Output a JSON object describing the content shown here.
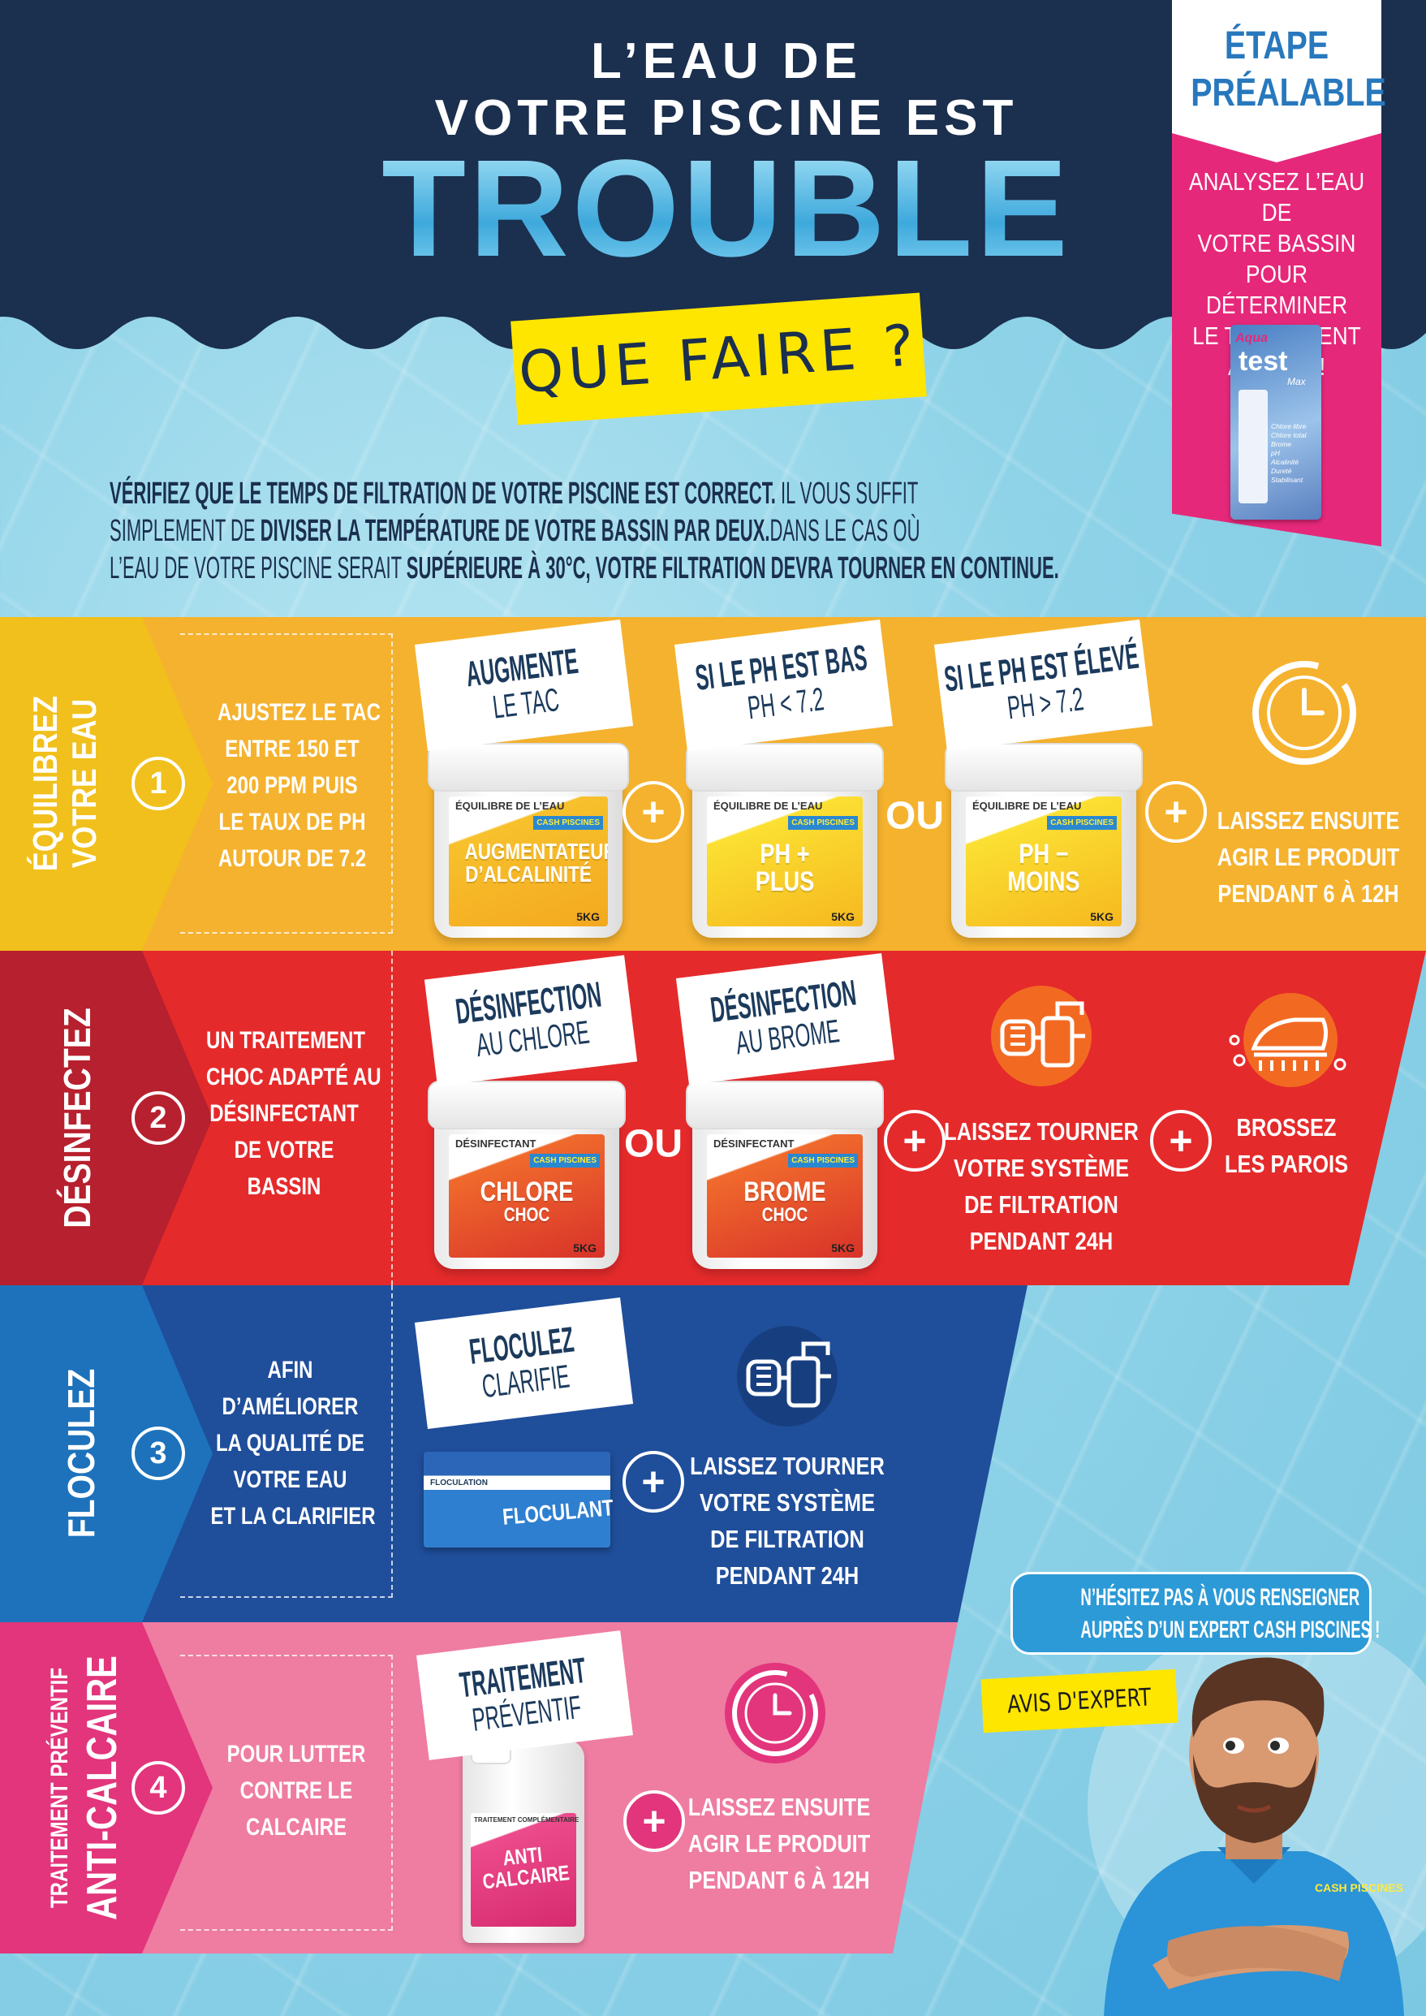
{
  "header": {
    "line1": "L’EAU DE",
    "line2": "VOTRE PISCINE EST",
    "big": "TROUBLE",
    "question": "QUE FAIRE ?"
  },
  "prerequisite": {
    "title1": "ÉTAPE",
    "title2": "PRÉALABLE",
    "text": [
      "ANALYSEZ L’EAU DE",
      "VOTRE BASSIN",
      "POUR DÉTERMINER",
      "LE TRAITEMENT",
      "ADAPTÉ !"
    ],
    "product": {
      "brand": "Aqua",
      "name": "test",
      "suffix": "Max",
      "list": [
        "Chlore libre",
        "Chlore total",
        "Brome",
        "pH",
        "Alcalinité",
        "Dureté",
        "Stabilisant"
      ]
    }
  },
  "intro": {
    "l1_bold": "VÉRIFIEZ QUE LE TEMPS DE FILTRATION DE VOTRE PISCINE EST CORRECT.",
    "l1_rest": " IL VOUS SUFFIT",
    "l2_a": "SIMPLEMENT DE ",
    "l2_bold": "DIVISER LA TEMPÉRATURE DE VOTRE BASSIN PAR DEUX.",
    "l2_rest": "DANS LE CAS OÙ",
    "l3_a": "L’EAU DE VOTRE PISCINE SERAIT ",
    "l3_bold": "SUPÉRIEURE À 30°C, VOTRE FILTRATION DEVRA TOURNER EN CONTINUE."
  },
  "common": {
    "plus": "+",
    "or": "OU",
    "brand": "CASH PISCINES",
    "weight": "5KG"
  },
  "steps": [
    {
      "number": "1",
      "title1": "ÉQUILIBREZ",
      "title2": "VOTRE EAU",
      "description": [
        "AJUSTEZ LE TAC",
        "ENTRE 150 ET",
        "200 PPM PUIS",
        "LE TAUX DE PH",
        "AUTOUR DE 7.2"
      ],
      "products": [
        {
          "card1": "AUGMENTE",
          "card2": "LE TAC",
          "category": "ÉQUILIBRE DE L’EAU",
          "name1": "AUGMENTATEUR",
          "name2": "D’ALCALINITÉ"
        },
        {
          "card1": "SI LE PH EST BAS",
          "card2": "PH < 7.2",
          "category": "ÉQUILIBRE DE L’EAU",
          "name1": "PH +",
          "name2": "PLUS"
        },
        {
          "card1": "SI LE PH EST ÉLEVÉ",
          "card2": "PH > 7.2",
          "category": "ÉQUILIBRE DE L’EAU",
          "name1": "PH −",
          "name2": "MOINS"
        }
      ],
      "action": [
        "LAISSEZ ENSUITE",
        "AGIR LE PRODUIT",
        "PENDANT 6 À 12H"
      ],
      "action_icon": "clock-icon",
      "band_color": "#f5b22e",
      "tab_color": "#f1c01c"
    },
    {
      "number": "2",
      "title1": "DÉSINFECTEZ",
      "description": [
        "UN TRAITEMENT",
        "CHOC ADAPTÉ AU",
        "DÉSINFECTANT",
        "DE VOTRE",
        "BASSIN"
      ],
      "products": [
        {
          "card1": "DÉSINFECTION",
          "card2": "AU CHLORE",
          "category": "DÉSINFECTANT",
          "name1": "CHLORE",
          "name2": "CHOC"
        },
        {
          "card1": "DÉSINFECTION",
          "card2": "AU BROME",
          "category": "DÉSINFECTANT",
          "name1": "BROME",
          "name2": "CHOC"
        }
      ],
      "action": [
        "LAISSEZ TOURNER",
        "VOTRE SYSTÈME",
        "DE FILTRATION",
        "PENDANT 24H"
      ],
      "action_icon": "filtration-icon",
      "action2": [
        "BROSSEZ",
        "LES PAROIS"
      ],
      "action2_icon": "brush-icon",
      "band_color": "#e52a2b",
      "tab_color": "#b7202e"
    },
    {
      "number": "3",
      "title1": "FLOCULEZ",
      "description": [
        "AFIN",
        "D’AMÉLIORER",
        "LA QUALITÉ DE",
        "VOTRE EAU",
        "ET LA CLARIFIER"
      ],
      "products": [
        {
          "card1": "FLOCULEZ",
          "card2": "CLARIFIE",
          "category": "FLOCULATION",
          "name1": "FLOCULANT"
        }
      ],
      "action": [
        "LAISSEZ TOURNER",
        "VOTRE SYSTÈME",
        "DE FILTRATION",
        "PENDANT 24H"
      ],
      "action_icon": "filtration-icon",
      "band_color": "#1f4e9b",
      "tab_color": "#1d72bb"
    },
    {
      "number": "4",
      "title1": "TRAITEMENT PRÉVENTIF",
      "title2": "ANTI-CALCAIRE",
      "description": [
        "POUR LUTTER",
        "CONTRE LE",
        "CALCAIRE"
      ],
      "products": [
        {
          "card1": "TRAITEMENT",
          "card2": "PRÉVENTIF",
          "category": "TRAITEMENT COMPLÉMENTAIRE",
          "name1": "ANTI",
          "name2": "CALCAIRE"
        }
      ],
      "action": [
        "LAISSEZ ENSUITE",
        "AGIR LE PRODUIT",
        "PENDANT 6 À 12H"
      ],
      "action_icon": "clock-icon",
      "band_color": "#ef7ca1",
      "tab_color": "#e2357b"
    }
  ],
  "expert": {
    "bubble1": "N’HÉSITEZ PAS À VOUS RENSEIGNER",
    "bubble2": "AUPRÈS D’UN EXPERT CASH PISCINES !",
    "tag": "AVIS D'EXPERT",
    "shirt_logo": "CASH PISCINES"
  },
  "colors": {
    "navy": "#1b2f4e",
    "water": "#8fd3e8",
    "pink": "#e6287a",
    "yellow_tag": "#ffe600",
    "expert_blue": "#2c9ad6"
  }
}
